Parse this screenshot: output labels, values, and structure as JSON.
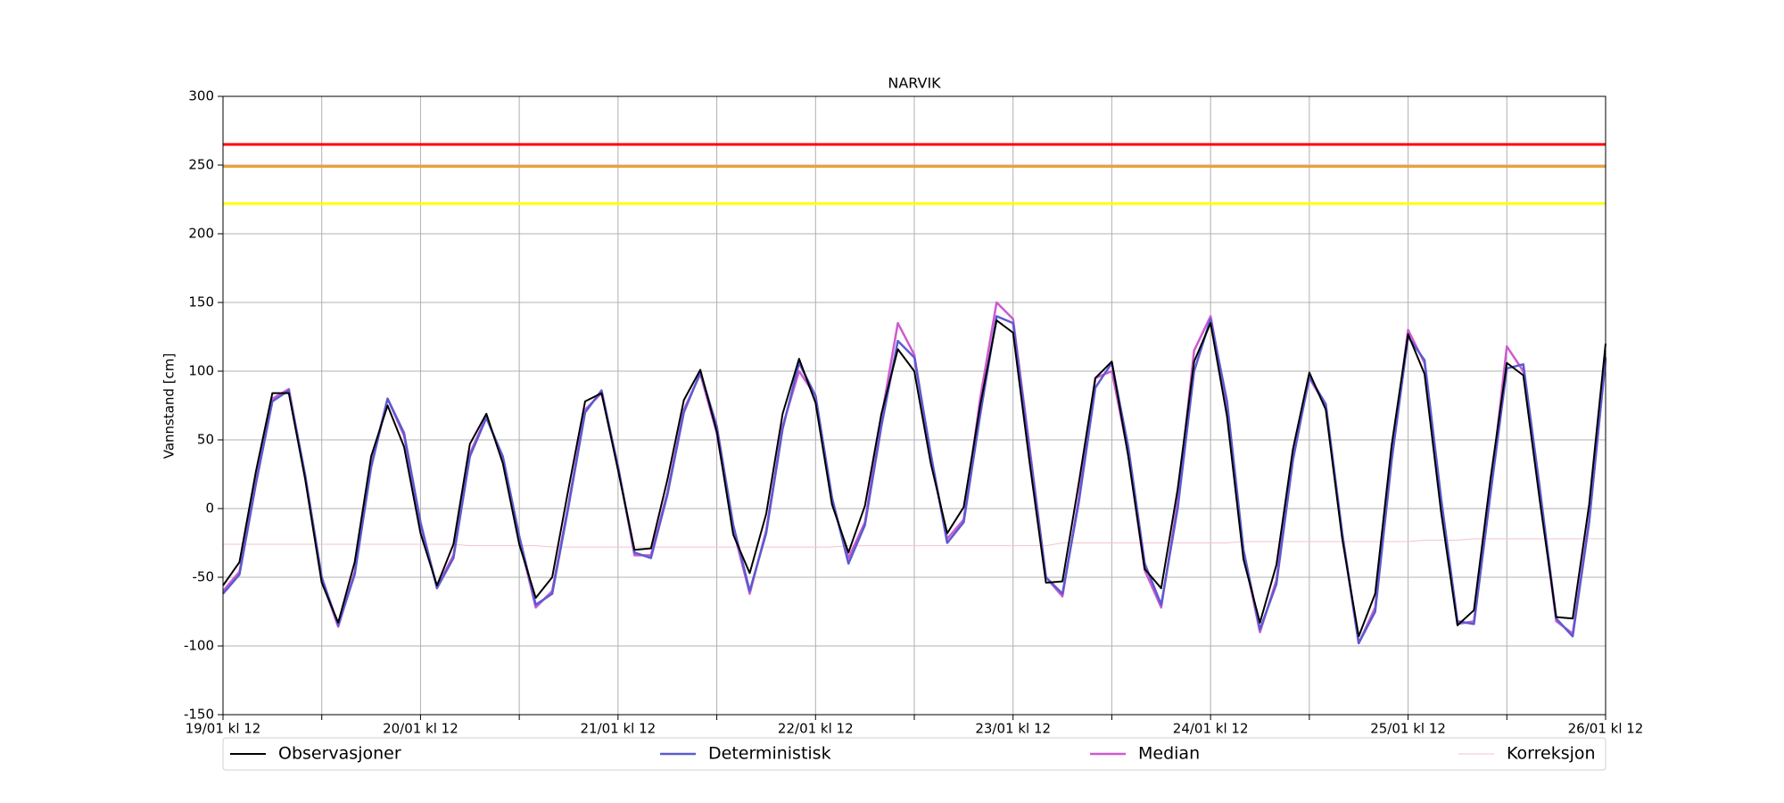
{
  "chart_data": {
    "type": "line",
    "title": "NARVIK",
    "ylabel": "Vannstand [cm]",
    "x": [
      0,
      2,
      4,
      6,
      8,
      10,
      12,
      14,
      16,
      18,
      20,
      22,
      24,
      26,
      28,
      30,
      32,
      34,
      36,
      38,
      40,
      42,
      44,
      46,
      48,
      50,
      52,
      54,
      56,
      58,
      60,
      62,
      64,
      66,
      68,
      70,
      72,
      74,
      76,
      78,
      80,
      82,
      84,
      86,
      88,
      90,
      92,
      94,
      96,
      98,
      100,
      102,
      104,
      106,
      108,
      110,
      112,
      114,
      116,
      118,
      120,
      122,
      124,
      126,
      128,
      130,
      132,
      134,
      136,
      138,
      140,
      142,
      144,
      146,
      148,
      150,
      152,
      154,
      156,
      158,
      160,
      162,
      164,
      166,
      168
    ],
    "xlim": [
      0,
      168
    ],
    "xticks": [
      {
        "value": 0,
        "label": "19/01 kl 12"
      },
      {
        "value": 12,
        "label": null
      },
      {
        "value": 24,
        "label": "20/01 kl 12"
      },
      {
        "value": 36,
        "label": null
      },
      {
        "value": 48,
        "label": "21/01 kl 12"
      },
      {
        "value": 60,
        "label": null
      },
      {
        "value": 72,
        "label": "22/01 kl 12"
      },
      {
        "value": 84,
        "label": null
      },
      {
        "value": 96,
        "label": "23/01 kl 12"
      },
      {
        "value": 108,
        "label": null
      },
      {
        "value": 120,
        "label": "24/01 kl 12"
      },
      {
        "value": 132,
        "label": null
      },
      {
        "value": 144,
        "label": "25/01 kl 12"
      },
      {
        "value": 156,
        "label": null
      },
      {
        "value": 168,
        "label": "26/01 kl 12"
      }
    ],
    "ylim": [
      -150,
      300
    ],
    "yticks": [
      -150,
      -100,
      -50,
      0,
      50,
      100,
      150,
      200,
      250,
      300
    ],
    "grid": true,
    "legend": "bottom",
    "thresholds": [
      {
        "value": 265,
        "color": "#ff0000"
      },
      {
        "value": 249,
        "color": "#f0a030"
      },
      {
        "value": 222,
        "color": "#ffff00"
      }
    ],
    "series": [
      {
        "name": "Korreksjon",
        "color": "#f2c4cc",
        "width": 1,
        "values": [
          -26,
          -26,
          -26,
          -26,
          -26,
          -26,
          -26,
          -26,
          -26,
          -26,
          -26,
          -26,
          -26,
          -26,
          -26,
          -27,
          -27,
          -27,
          -27,
          -27,
          -28,
          -28,
          -28,
          -28,
          -28,
          -28,
          -28,
          -28,
          -28,
          -28,
          -28,
          -28,
          -28,
          -28,
          -28,
          -28,
          -28,
          -28,
          -27,
          -27,
          -27,
          -27,
          -27,
          -27,
          -27,
          -27,
          -27,
          -27,
          -27,
          -27,
          -27,
          -25,
          -25,
          -25,
          -25,
          -25,
          -25,
          -25,
          -25,
          -25,
          -25,
          -25,
          -24,
          -24,
          -24,
          -24,
          -24,
          -24,
          -24,
          -24,
          -24,
          -24,
          -24,
          -23,
          -23,
          -23,
          -22,
          -22,
          -22,
          -22,
          -22,
          -22,
          -22,
          -22,
          -22
        ]
      },
      {
        "name": "Median",
        "color": "#cc5bd0",
        "width": 2.5,
        "values": [
          -60,
          -46,
          20,
          80,
          87,
          22,
          -52,
          -86,
          -46,
          32,
          80,
          53,
          -12,
          -57,
          -34,
          40,
          67,
          36,
          -22,
          -72,
          -60,
          4,
          72,
          84,
          31,
          -34,
          -34,
          12,
          72,
          98,
          55,
          -15,
          -62,
          -16,
          60,
          100,
          82,
          6,
          -36,
          -10,
          66,
          135,
          112,
          38,
          -22,
          -8,
          80,
          150,
          138,
          45,
          -50,
          -64,
          8,
          95,
          100,
          40,
          -45,
          -72,
          5,
          115,
          140,
          75,
          -32,
          -90,
          -52,
          38,
          95,
          75,
          -20,
          -98,
          -72,
          38,
          130,
          106,
          5,
          -84,
          -82,
          12,
          118,
          100,
          12,
          -82,
          -91,
          -8,
          108
        ]
      },
      {
        "name": "Deterministisk",
        "color": "#5b5bd0",
        "width": 2.5,
        "values": [
          -62,
          -48,
          18,
          78,
          86,
          24,
          -50,
          -85,
          -48,
          30,
          80,
          55,
          -10,
          -58,
          -36,
          38,
          66,
          38,
          -20,
          -70,
          -62,
          2,
          70,
          86,
          30,
          -32,
          -36,
          10,
          70,
          99,
          60,
          -12,
          -60,
          -18,
          58,
          106,
          82,
          8,
          -40,
          -12,
          60,
          122,
          110,
          40,
          -25,
          -10,
          68,
          140,
          135,
          42,
          -50,
          -62,
          5,
          88,
          106,
          45,
          -40,
          -70,
          0,
          100,
          138,
          78,
          -30,
          -88,
          -55,
          35,
          96,
          76,
          -18,
          -98,
          -75,
          35,
          125,
          108,
          8,
          -82,
          -84,
          10,
          102,
          105,
          15,
          -80,
          -93,
          -10,
          110
        ]
      },
      {
        "name": "Observasjoner",
        "color": "#000000",
        "width": 2,
        "values": [
          -56,
          -39,
          27,
          84,
          84,
          21,
          -54,
          -83,
          -39,
          38,
          75,
          45,
          -18,
          -56,
          -26,
          47,
          69,
          33,
          -26,
          -65,
          -50,
          15,
          78,
          84,
          28,
          -30,
          -29,
          21,
          79,
          101,
          56,
          -19,
          -47,
          -4,
          69,
          109,
          77,
          3,
          -32,
          2,
          69,
          116,
          100,
          33,
          -18,
          1,
          75,
          137,
          128,
          34,
          -54,
          -53,
          19,
          95,
          107,
          38,
          -44,
          -58,
          14,
          107,
          135,
          67,
          -37,
          -83,
          -41,
          43,
          99,
          72,
          -22,
          -93,
          -62,
          46,
          127,
          98,
          -2,
          -85,
          -74,
          21,
          106,
          97,
          6,
          -79,
          -80,
          3,
          120
        ]
      }
    ],
    "legend_order": [
      3,
      2,
      1,
      0
    ]
  }
}
